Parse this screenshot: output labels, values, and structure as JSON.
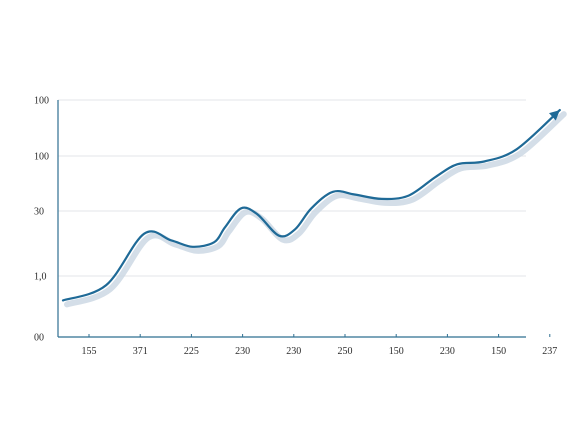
{
  "chart_data": {
    "type": "line",
    "title": "",
    "xlabel": "",
    "ylabel": "",
    "x_tick_labels": [
      "155",
      "371",
      "225",
      "230",
      "230",
      "250",
      "150",
      "230",
      "150",
      "237"
    ],
    "y_tick_labels": [
      "00",
      "1,0",
      "30",
      "100",
      "100"
    ],
    "grid": true,
    "series": [
      {
        "color": "#1f6a97",
        "shadow_color": "#c9d6e2",
        "end_marker": "arrow",
        "points": [
          [
            0.0,
            0.6
          ],
          [
            0.8,
            0.85
          ],
          [
            1.5,
            1.65
          ],
          [
            2.0,
            1.55
          ],
          [
            2.4,
            1.45
          ],
          [
            2.8,
            1.52
          ],
          [
            3.0,
            1.75
          ],
          [
            3.3,
            2.05
          ],
          [
            3.6,
            1.95
          ],
          [
            4.0,
            1.62
          ],
          [
            4.3,
            1.72
          ],
          [
            4.6,
            2.05
          ],
          [
            5.0,
            2.35
          ],
          [
            5.4,
            2.3
          ],
          [
            5.9,
            2.22
          ],
          [
            6.4,
            2.28
          ],
          [
            6.9,
            2.62
          ],
          [
            7.3,
            2.85
          ],
          [
            7.8,
            2.9
          ],
          [
            8.4,
            3.12
          ],
          [
            9.2,
            3.82
          ]
        ]
      }
    ]
  }
}
